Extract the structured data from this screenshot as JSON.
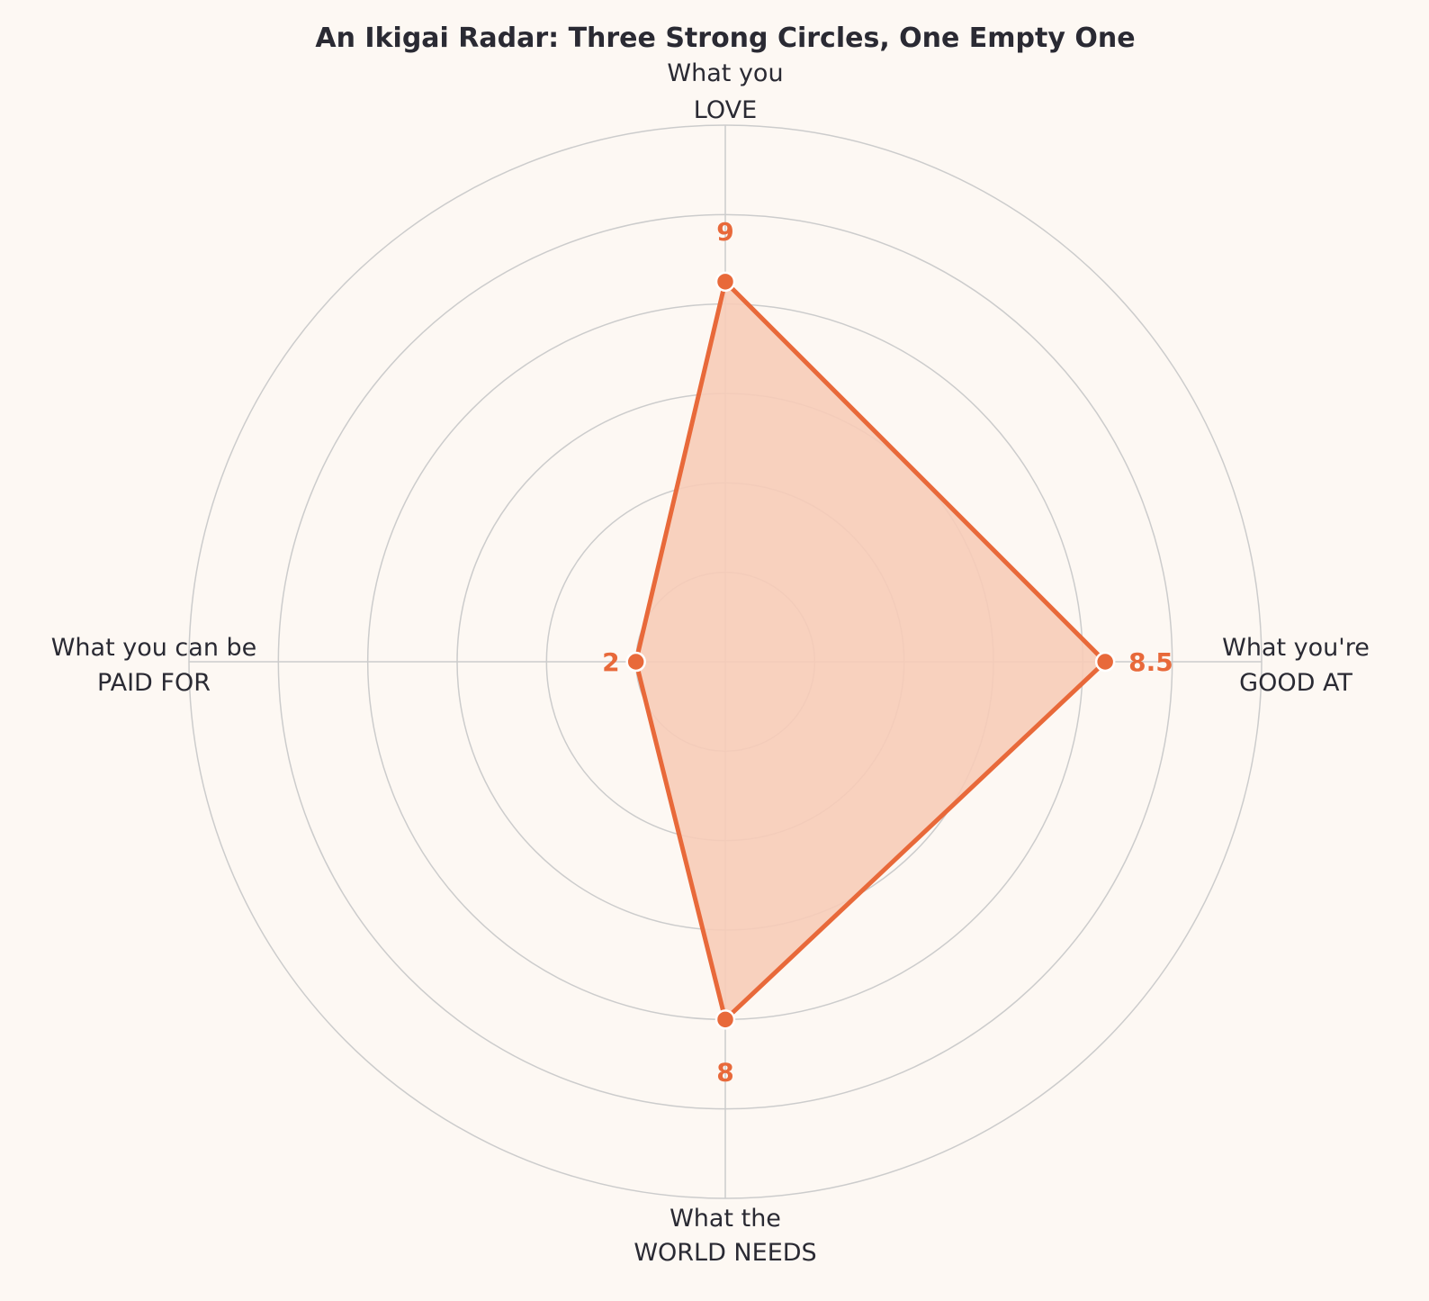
{
  "chart_data": {
    "type": "radar",
    "title": "An Ikigai Radar: Three Strong Circles, One Empty One",
    "axes": [
      {
        "line1": "What you",
        "line2": "LOVE",
        "value": 8.5,
        "value_label": "9"
      },
      {
        "line1": "What you're",
        "line2": "GOOD AT",
        "value": 8.5,
        "value_label": "8.5"
      },
      {
        "line1": "What the",
        "line2": "WORLD NEEDS",
        "value": 8,
        "value_label": "8"
      },
      {
        "line1": "What you can be",
        "line2": "PAID FOR",
        "value": 2,
        "value_label": "2"
      }
    ],
    "rmax": 12,
    "ring_step": 2,
    "grid": true,
    "colors": {
      "accent": "#e8693a",
      "fill": "#f7ccb8",
      "grid": "#cccccc",
      "text": "#2a2a33",
      "background": "#fdf8f3"
    }
  }
}
